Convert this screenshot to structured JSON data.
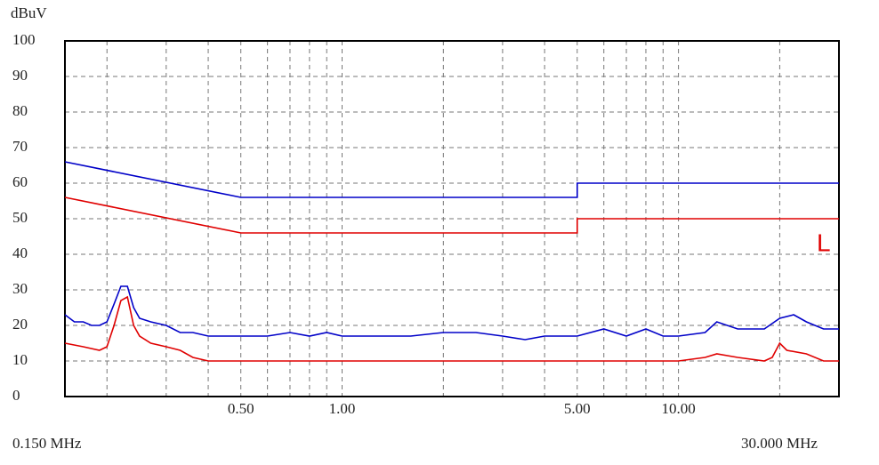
{
  "chart_data": {
    "type": "line",
    "xscale": "log",
    "ylabel": "dBuV",
    "x_start_label": "0.150 MHz",
    "x_end_label": "30.000 MHz",
    "annotation": "L",
    "annotation_color": "#e00000",
    "grid": true,
    "xlim": [
      0.15,
      30
    ],
    "ylim": [
      0,
      100
    ],
    "yticks": [
      0,
      10,
      20,
      30,
      40,
      50,
      60,
      70,
      80,
      90,
      100
    ],
    "xticks": [
      {
        "value": 0.5,
        "label": "0.50"
      },
      {
        "value": 1,
        "label": "1.00"
      },
      {
        "value": 5,
        "label": "5.00"
      },
      {
        "value": 10,
        "label": "10.00"
      }
    ],
    "xgrid": [
      0.2,
      0.3,
      0.4,
      0.5,
      0.6,
      0.7,
      0.8,
      0.9,
      1,
      2,
      3,
      4,
      5,
      6,
      7,
      8,
      9,
      10,
      20
    ],
    "series": [
      {
        "color": "#0000c8",
        "x": [
          0.15,
          0.5,
          5,
          5,
          30
        ],
        "values": [
          66,
          56,
          56,
          60,
          60
        ]
      },
      {
        "color": "#e00000",
        "x": [
          0.15,
          0.5,
          5,
          5,
          30
        ],
        "values": [
          56,
          46,
          46,
          50,
          50
        ]
      },
      {
        "color": "#0000c8",
        "x": [
          0.15,
          0.16,
          0.17,
          0.18,
          0.19,
          0.2,
          0.21,
          0.22,
          0.23,
          0.24,
          0.25,
          0.27,
          0.3,
          0.33,
          0.36,
          0.4,
          0.45,
          0.5,
          0.6,
          0.7,
          0.8,
          0.9,
          1.0,
          1.3,
          1.6,
          2,
          2.5,
          3,
          3.5,
          4,
          5,
          6,
          7,
          8,
          9,
          10,
          12,
          13,
          15,
          18,
          20,
          22,
          24,
          27,
          30
        ],
        "values": [
          23,
          21,
          21,
          20,
          20,
          21,
          26,
          31,
          31,
          25,
          22,
          21,
          20,
          18,
          18,
          17,
          17,
          17,
          17,
          18,
          17,
          18,
          17,
          17,
          17,
          18,
          18,
          17,
          16,
          17,
          17,
          19,
          17,
          19,
          17,
          17,
          18,
          21,
          19,
          19,
          22,
          23,
          21,
          19,
          19
        ]
      },
      {
        "color": "#e00000",
        "x": [
          0.15,
          0.17,
          0.19,
          0.2,
          0.21,
          0.22,
          0.23,
          0.24,
          0.25,
          0.27,
          0.3,
          0.33,
          0.36,
          0.4,
          0.45,
          0.5,
          0.7,
          1.0,
          1.5,
          2,
          3,
          5,
          7,
          10,
          12,
          13,
          15,
          18,
          19,
          20,
          21,
          24,
          27,
          30
        ],
        "values": [
          15,
          14,
          13,
          14,
          20,
          27,
          28,
          20,
          17,
          15,
          14,
          13,
          11,
          10,
          10,
          10,
          10,
          10,
          10,
          10,
          10,
          10,
          10,
          10,
          11,
          12,
          11,
          10,
          11,
          15,
          13,
          12,
          10,
          10
        ]
      }
    ]
  }
}
